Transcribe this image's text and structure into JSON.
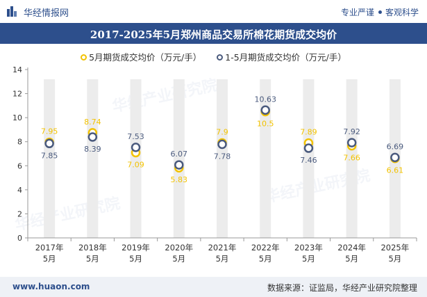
{
  "header": {
    "brand": "华经情报网",
    "slogan_left": "专业严谨",
    "slogan_right": "客观科学"
  },
  "title": "2017-2025年5月郑州商品交易所棉花期货成交均价",
  "legend": {
    "may_label": "5月期货成交均价（万元/手）",
    "ytd_label": "1-5月期货成交均价（万元/手）"
  },
  "colors": {
    "may": "#f2c200",
    "ytd": "#4a5a7d",
    "bar": "#ececec",
    "brand": "#2d4f8c"
  },
  "footer": {
    "url": "www.huaon.com",
    "source": "数据来源：证监局，华经产业研究院整理"
  },
  "watermark": "华经产业研究院",
  "chart_data": {
    "type": "line",
    "categories": [
      "2017年\n5月",
      "2018年\n5月",
      "2019年\n5月",
      "2020年\n5月",
      "2021年\n5月",
      "2022年\n5月",
      "2023年\n5月",
      "2024年\n5月",
      "2025年\n5月"
    ],
    "series": [
      {
        "name": "5月期货成交均价（万元/手）",
        "values": [
          7.95,
          8.74,
          7.09,
          5.83,
          7.9,
          10.5,
          7.89,
          7.66,
          6.61
        ]
      },
      {
        "name": "1-5月期货成交均价（万元/手）",
        "values": [
          7.85,
          8.39,
          7.53,
          6.07,
          7.78,
          10.63,
          7.46,
          7.92,
          6.69
        ]
      }
    ],
    "ylim": [
      0,
      14
    ],
    "yticks": [
      0,
      2,
      4,
      6,
      8,
      10,
      12,
      14
    ],
    "grid": false,
    "legend_position": "top"
  }
}
